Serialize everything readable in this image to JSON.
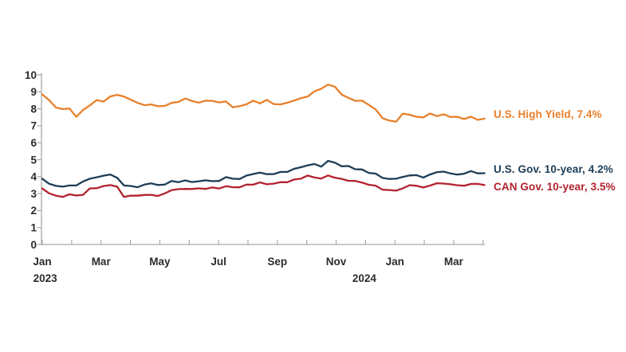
{
  "page": {
    "background": "#FFFFFF"
  },
  "chart_data": {
    "type": "line",
    "title": "",
    "xlabel": "",
    "ylabel": "",
    "ylim": [
      0,
      10
    ],
    "y_tick_step": 1,
    "y_tick_labels": [
      "0",
      "1",
      "2",
      "3",
      "4",
      "5",
      "6",
      "7",
      "8",
      "9",
      "10"
    ],
    "grid": false,
    "legend_position": "right-of-lines",
    "axis_color": "#A8A8A8",
    "label_color": "#2B2B2B",
    "wiggle": 0.03,
    "x_axis": {
      "months_total": 16,
      "tick_labels": [
        "Jan",
        "",
        "Mar",
        "",
        "May",
        "",
        "Jul",
        "",
        "Sep",
        "",
        "Nov",
        "",
        "Jan",
        "",
        "Mar",
        ""
      ],
      "year_labels": [
        {
          "text": "2023",
          "month_index": 0.1
        },
        {
          "text": "2024",
          "month_index": 10.96
        }
      ]
    },
    "x_start_month": 0,
    "x_end_month": 15.05,
    "series": [
      {
        "name": "U.S. High Yield",
        "legend_label": "U.S. High Yield, 7.4%",
        "last_value": 7.4,
        "color": "#E8802B",
        "values": [
          8.85,
          8.5,
          8.1,
          7.95,
          8.05,
          7.5,
          7.95,
          8.2,
          8.5,
          8.45,
          8.7,
          8.85,
          8.7,
          8.55,
          8.35,
          8.2,
          8.28,
          8.12,
          8.2,
          8.32,
          8.42,
          8.6,
          8.45,
          8.38,
          8.45,
          8.5,
          8.35,
          8.45,
          8.08,
          8.15,
          8.28,
          8.45,
          8.35,
          8.5,
          8.3,
          8.25,
          8.35,
          8.5,
          8.6,
          8.75,
          9.0,
          9.2,
          9.42,
          9.3,
          8.85,
          8.62,
          8.5,
          8.45,
          8.25,
          7.95,
          7.45,
          7.32,
          7.22,
          7.75,
          7.62,
          7.55,
          7.48,
          7.72,
          7.58,
          7.65,
          7.55,
          7.5,
          7.42,
          7.52,
          7.35,
          7.42
        ]
      },
      {
        "name": "U.S. Gov. 10-year",
        "legend_label": "U.S. Gov. 10-year, 4.2%",
        "last_value": 4.2,
        "color": "#1D3D56",
        "values": [
          3.88,
          3.6,
          3.45,
          3.4,
          3.5,
          3.45,
          3.75,
          3.85,
          3.98,
          4.05,
          4.12,
          3.95,
          3.45,
          3.48,
          3.35,
          3.55,
          3.6,
          3.5,
          3.55,
          3.72,
          3.7,
          3.75,
          3.7,
          3.72,
          3.78,
          3.75,
          3.72,
          4.0,
          3.85,
          3.88,
          4.05,
          4.15,
          4.25,
          4.12,
          4.18,
          4.25,
          4.3,
          4.45,
          4.55,
          4.68,
          4.72,
          4.62,
          4.9,
          4.85,
          4.6,
          4.63,
          4.45,
          4.4,
          4.25,
          4.15,
          3.95,
          3.85,
          3.88,
          4.0,
          4.05,
          4.12,
          3.92,
          4.15,
          4.25,
          4.3,
          4.2,
          4.1,
          4.2,
          4.3,
          4.22,
          4.2
        ]
      },
      {
        "name": "CAN Gov. 10-year",
        "legend_label": "CAN Gov. 10-year, 3.5%",
        "last_value": 3.5,
        "color": "#B2222E",
        "values": [
          3.3,
          3.05,
          2.85,
          2.82,
          2.95,
          2.88,
          2.95,
          3.28,
          3.35,
          3.42,
          3.52,
          3.4,
          2.8,
          2.9,
          2.85,
          2.95,
          2.9,
          2.88,
          3.0,
          3.2,
          3.28,
          3.25,
          3.3,
          3.28,
          3.3,
          3.35,
          3.3,
          3.45,
          3.35,
          3.4,
          3.5,
          3.55,
          3.65,
          3.55,
          3.6,
          3.65,
          3.7,
          3.8,
          3.9,
          4.05,
          3.95,
          3.9,
          4.05,
          3.97,
          3.84,
          3.78,
          3.73,
          3.65,
          3.53,
          3.45,
          3.26,
          3.18,
          3.2,
          3.3,
          3.5,
          3.47,
          3.34,
          3.5,
          3.58,
          3.62,
          3.53,
          3.5,
          3.47,
          3.55,
          3.6,
          3.5
        ]
      }
    ]
  }
}
